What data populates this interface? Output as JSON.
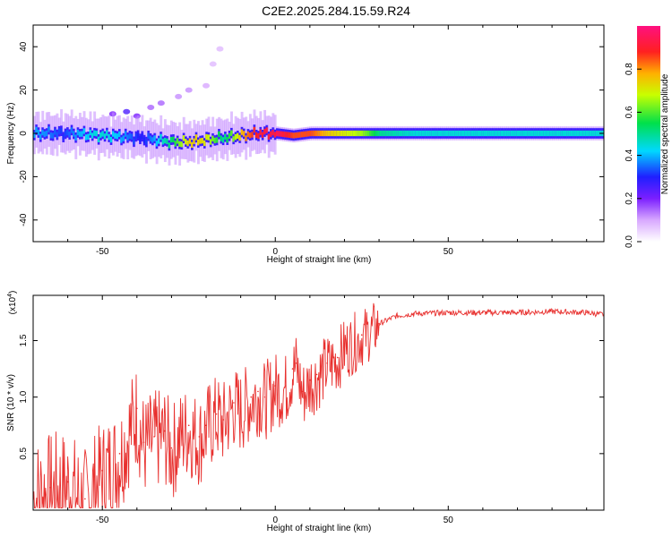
{
  "title": "C2E2.2025.284.15.59.R24",
  "colors": {
    "snr_line": "#e8302e",
    "axis": "#000000"
  },
  "chart_data": [
    {
      "type": "heatmap",
      "xlabel": "Height of straight line (km)",
      "ylabel": "Frequency (Hz)",
      "xlim": [
        -70,
        95
      ],
      "ylim": [
        -50,
        50
      ],
      "xticks": [
        -50,
        0,
        50
      ],
      "yticks": [
        -40,
        -20,
        0,
        20,
        40
      ],
      "colorbar": {
        "label": "Normalized spectral amplitude",
        "range": [
          0,
          1
        ],
        "ticks": [
          "0.0",
          "0.2",
          "0.4",
          "0.6",
          "0.8"
        ],
        "colormap": "rainbow (white-purple-blue-cyan-green-yellow-orange-red-magenta)"
      },
      "ridge": {
        "x": [
          -70,
          -60,
          -50,
          -40,
          -30,
          -25,
          -20,
          -15,
          -10,
          -5,
          0,
          5,
          10,
          15,
          20,
          25,
          30,
          40,
          50,
          60,
          70,
          80,
          90,
          95
        ],
        "freq": [
          0,
          0,
          -1,
          -2,
          -4,
          -4,
          -3,
          -2,
          -1,
          0,
          0,
          -1,
          0,
          0,
          0,
          0,
          0,
          0,
          0,
          0,
          0,
          0,
          0,
          0
        ],
        "amplitude": [
          0.4,
          0.45,
          0.45,
          0.4,
          0.55,
          0.75,
          0.8,
          0.7,
          0.85,
          0.9,
          0.95,
          0.85,
          0.85,
          0.75,
          0.7,
          0.65,
          0.5,
          0.45,
          0.45,
          0.45,
          0.45,
          0.45,
          0.45,
          0.45
        ]
      },
      "scatter_blobs": {
        "x": [
          -47,
          -43,
          -40,
          -36,
          -33,
          -28,
          -25,
          -20,
          -18,
          -16
        ],
        "freq": [
          9,
          10,
          8,
          12,
          14,
          17,
          20,
          22,
          32,
          39
        ],
        "amplitude": [
          0.2,
          0.25,
          0.2,
          0.15,
          0.15,
          0.12,
          0.12,
          0.1,
          0.08,
          0.08
        ]
      }
    },
    {
      "type": "line",
      "xlabel": "Height of straight line (km)",
      "ylabel": "SNR (10 * v/v)",
      "yscale_label": "(x10",
      "yscale_exp": "4",
      "yscale_close": ")",
      "xlim": [
        -70,
        95
      ],
      "ylim": [
        0,
        1.9
      ],
      "xticks": [
        -50,
        0,
        50
      ],
      "yticks": [
        "0.5",
        "1.0",
        "1.5"
      ],
      "series": [
        {
          "x": [
            -70,
            -65,
            -60,
            -55,
            -50,
            -45,
            -42,
            -40,
            -38,
            -35,
            -32,
            -30,
            -27,
            -25,
            -22,
            -20,
            -17,
            -15,
            -12,
            -10,
            -7,
            -5,
            -3,
            0,
            3,
            5,
            6,
            8,
            10,
            12,
            15,
            18,
            20,
            25,
            30,
            35,
            40,
            50,
            60,
            70,
            80,
            90,
            95
          ],
          "y": [
            0.15,
            0.2,
            0.25,
            0.1,
            0.35,
            0.5,
            0.75,
            0.9,
            0.6,
            0.65,
            0.7,
            0.55,
            0.7,
            0.75,
            0.65,
            0.75,
            0.85,
            0.8,
            0.95,
            0.9,
            1.0,
            1.05,
            1.0,
            1.1,
            1.1,
            1.25,
            1.3,
            1.05,
            1.15,
            1.2,
            1.3,
            1.35,
            1.45,
            1.55,
            1.65,
            1.72,
            1.74,
            1.75,
            1.75,
            1.75,
            1.76,
            1.75,
            1.73
          ]
        }
      ]
    }
  ]
}
